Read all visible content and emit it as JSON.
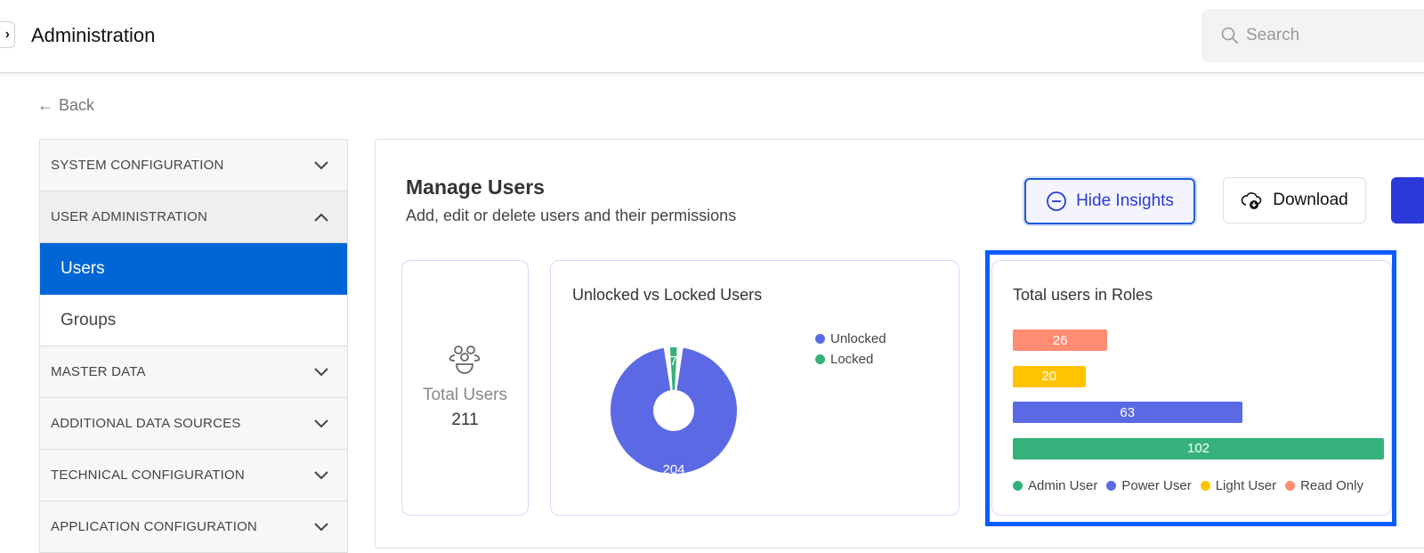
{
  "header": {
    "title": "Administration",
    "search_placeholder": "Search"
  },
  "back_label": "Back",
  "sidebar": {
    "sections": [
      {
        "label": "SYSTEM CONFIGURATION",
        "expanded": false
      },
      {
        "label": "USER ADMINISTRATION",
        "expanded": true,
        "items": [
          {
            "label": "Users",
            "active": true
          },
          {
            "label": "Groups",
            "active": false
          }
        ]
      },
      {
        "label": "MASTER DATA",
        "expanded": false
      },
      {
        "label": "ADDITIONAL DATA SOURCES",
        "expanded": false
      },
      {
        "label": "TECHNICAL CONFIGURATION",
        "expanded": false
      },
      {
        "label": "APPLICATION CONFIGURATION",
        "expanded": false
      }
    ]
  },
  "page": {
    "title": "Manage Users",
    "subtitle": "Add, edit or delete users and their permissions",
    "hide_insights": "Hide Insights",
    "download": "Download"
  },
  "total_users": {
    "label": "Total Users",
    "value": "211"
  },
  "colors": {
    "accent": "#0066d6",
    "unlocked": "#5b6ae4",
    "locked": "#35b27b",
    "admin": "#35b27b",
    "power": "#5b6ae4",
    "light": "#ffc400",
    "read": "#ff8c73"
  },
  "chart_data": [
    {
      "type": "pie",
      "title": "Unlocked vs Locked Users",
      "donut": true,
      "categories": [
        "Unlocked",
        "Locked"
      ],
      "values": [
        204,
        7
      ],
      "legend": "right"
    },
    {
      "type": "bar",
      "orientation": "horizontal",
      "title": "Total users in Roles",
      "categories": [
        "Read Only",
        "Light User",
        "Power User",
        "Admin User"
      ],
      "values": [
        26,
        20,
        63,
        102
      ],
      "legend_order": [
        "Admin User",
        "Power User",
        "Light User",
        "Read Only"
      ],
      "legend": "bottom",
      "xlim": [
        0,
        102
      ]
    }
  ]
}
